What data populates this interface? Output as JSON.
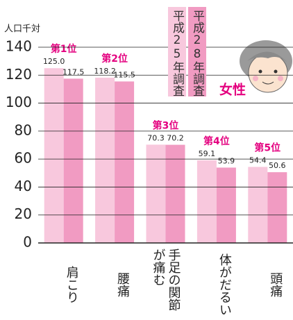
{
  "chart_data": {
    "type": "bar",
    "y_label": "人口千対",
    "annotation": "女性",
    "categories": [
      "肩こり",
      "腰痛",
      "手足の関節が痛む",
      "体がだるい",
      "頭痛"
    ],
    "rank_labels": [
      "第1位",
      "第2位",
      "第3位",
      "第4位",
      "第5位"
    ],
    "series": [
      {
        "name": "平成25年調査",
        "color": "#f8c8dd",
        "values": [
          125.0,
          118.2,
          70.3,
          59.1,
          54.4
        ],
        "value_labels": [
          "125.0",
          "118.2",
          "70.3",
          "59.1",
          "54.4"
        ]
      },
      {
        "name": "平成28年調査",
        "color": "#f19bc2",
        "values": [
          117.5,
          115.5,
          70.2,
          53.9,
          50.6
        ],
        "value_labels": [
          "117.5",
          "115.5",
          "70.2",
          "53.9",
          "50.6"
        ]
      }
    ],
    "ylim": [
      0,
      140
    ],
    "yticks": [
      0,
      20,
      40,
      60,
      80,
      100,
      120,
      140
    ],
    "grid": true
  }
}
